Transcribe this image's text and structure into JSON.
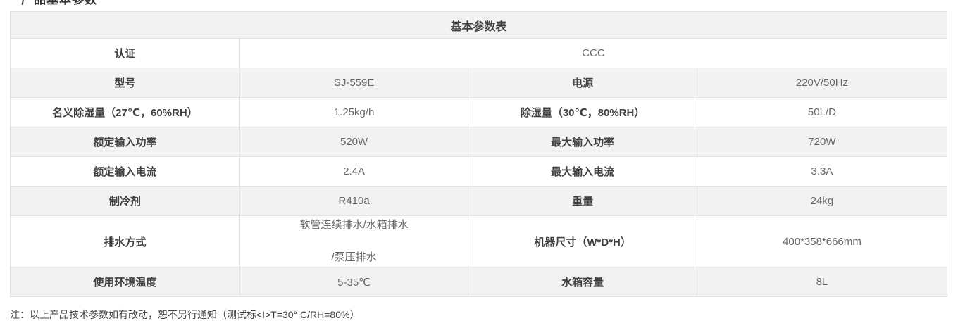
{
  "page": {
    "clipped_heading": "产品基本参数"
  },
  "table": {
    "title": "基本参数表",
    "rows": [
      {
        "cells": [
          {
            "text": "认证",
            "kind": "label",
            "span": 1
          },
          {
            "text": "CCC",
            "kind": "value",
            "span": 3
          }
        ]
      },
      {
        "cells": [
          {
            "text": "型号",
            "kind": "label"
          },
          {
            "text": "SJ-559E",
            "kind": "value"
          },
          {
            "text": "电源",
            "kind": "label"
          },
          {
            "text": "220V/50Hz",
            "kind": "value"
          }
        ]
      },
      {
        "cells": [
          {
            "text": "名义除湿量（27℃，60%RH）",
            "kind": "label"
          },
          {
            "text": "1.25kg/h",
            "kind": "value"
          },
          {
            "text": "除湿量（30℃，80%RH）",
            "kind": "label"
          },
          {
            "text": "50L/D",
            "kind": "value"
          }
        ]
      },
      {
        "cells": [
          {
            "text": "额定输入功率",
            "kind": "label"
          },
          {
            "text": "520W",
            "kind": "value"
          },
          {
            "text": "最大输入功率",
            "kind": "label"
          },
          {
            "text": "720W",
            "kind": "value"
          }
        ]
      },
      {
        "cells": [
          {
            "text": "额定输入电流",
            "kind": "label"
          },
          {
            "text": "2.4A",
            "kind": "value"
          },
          {
            "text": "最大输入电流",
            "kind": "label"
          },
          {
            "text": "3.3A",
            "kind": "value"
          }
        ]
      },
      {
        "cells": [
          {
            "text": "制冷剂",
            "kind": "label"
          },
          {
            "text": "R410a",
            "kind": "value"
          },
          {
            "text": "重量",
            "kind": "label"
          },
          {
            "text": "24kg",
            "kind": "value"
          }
        ]
      },
      {
        "cells": [
          {
            "text": "排水方式",
            "kind": "label"
          },
          {
            "lines": [
              "软管连续排水/水箱排水",
              "/泵压排水"
            ],
            "kind": "value"
          },
          {
            "text": "机器尺寸（W*D*H）",
            "kind": "label"
          },
          {
            "text": "400*358*666mm",
            "kind": "value"
          }
        ]
      },
      {
        "cells": [
          {
            "text": "使用环境温度",
            "kind": "label"
          },
          {
            "text": "5-35℃",
            "kind": "value"
          },
          {
            "text": "水箱容量",
            "kind": "label"
          },
          {
            "text": "8L",
            "kind": "value"
          }
        ]
      }
    ]
  },
  "footnote": "注：以上产品技术参数如有改动，恕不另行通知（测试标<I>T=30° C/RH=80%）",
  "colors": {
    "row_alt_bg": "#f2f2f2",
    "border": "#e2e2e2",
    "label_text": "#404040",
    "value_text": "#666666"
  }
}
